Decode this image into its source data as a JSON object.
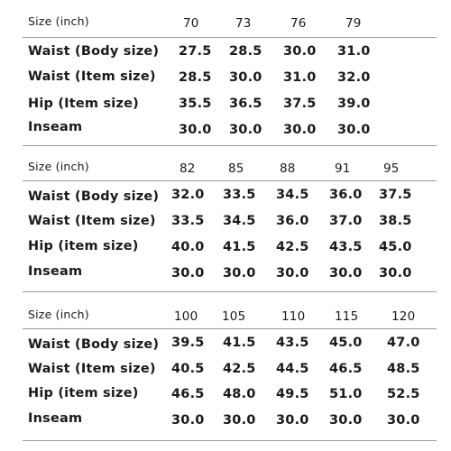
{
  "tables": [
    {
      "header_label": "Size (inch)",
      "sizes": [
        "70",
        "73",
        "76",
        "79"
      ],
      "rows": [
        {
          "label": "Waist (Body size)",
          "values": [
            "27.5",
            "28.5",
            "30.0",
            "31.0"
          ]
        },
        {
          "label": "Waist (Item size)",
          "values": [
            "28.5",
            "30.0",
            "31.0",
            "32.0"
          ]
        },
        {
          "label": "Hip (Item size)",
          "values": [
            "35.5",
            "36.5",
            "37.5",
            "39.0"
          ]
        },
        {
          "label": "Inseam",
          "values": [
            "30.0",
            "30.0",
            "30.0",
            "30.0"
          ]
        }
      ]
    },
    {
      "header_label": "Size (inch)",
      "sizes": [
        "82",
        "85",
        "88",
        "91",
        "95"
      ],
      "rows": [
        {
          "label": "Waist (Body size)",
          "values": [
            "32.0",
            "33.5",
            "34.5",
            "36.0",
            "37.5"
          ]
        },
        {
          "label": "Waist (Item size)",
          "values": [
            "33.5",
            "34.5",
            "36.0",
            "37.0",
            "38.5"
          ]
        },
        {
          "label": "Hip (item size)",
          "values": [
            "40.0",
            "41.5",
            "42.5",
            "43.5",
            "45.0"
          ]
        },
        {
          "label": "Inseam",
          "values": [
            "30.0",
            "30.0",
            "30.0",
            "30.0",
            "30.0"
          ]
        }
      ]
    },
    {
      "header_label": "Size (inch)",
      "sizes": [
        "100",
        "105",
        "110",
        "115",
        "120"
      ],
      "rows": [
        {
          "label": "Waist (Body size)",
          "values": [
            "39.5",
            "41.5",
            "43.5",
            "45.0",
            "47.0"
          ]
        },
        {
          "label": "Waist (Item size)",
          "values": [
            "40.5",
            "42.5",
            "44.5",
            "46.5",
            "48.5"
          ]
        },
        {
          "label": "Hip (item size)",
          "values": [
            "46.5",
            "48.0",
            "49.5",
            "51.0",
            "52.5"
          ]
        },
        {
          "label": "Inseam",
          "values": [
            "30.0",
            "30.0",
            "30.0",
            "30.0",
            "30.0"
          ]
        }
      ]
    }
  ]
}
